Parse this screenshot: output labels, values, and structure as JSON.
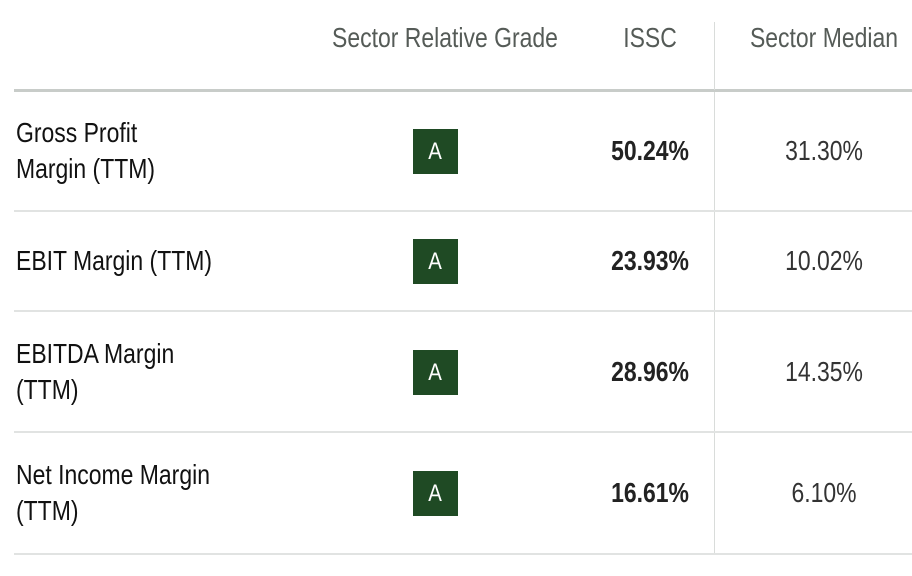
{
  "header": {
    "grade_label": "Sector Relative Grade",
    "ticker_label": "ISSC",
    "median_label": "Sector Median"
  },
  "rows": [
    {
      "metric": "Gross Profit\nMargin (TTM)",
      "grade": "A",
      "ticker_value": "50.24%",
      "median_value": "31.30%"
    },
    {
      "metric": "EBIT Margin (TTM)",
      "grade": "A",
      "ticker_value": "23.93%",
      "median_value": "10.02%"
    },
    {
      "metric": "EBITDA Margin\n(TTM)",
      "grade": "A",
      "ticker_value": "28.96%",
      "median_value": "14.35%"
    },
    {
      "metric": "Net Income Margin\n(TTM)",
      "grade": "A",
      "ticker_value": "16.61%",
      "median_value": "6.10%"
    }
  ],
  "colors": {
    "grade_badge": "#1f4a24",
    "header_text": "#555b57",
    "divider": "#c8ccc9"
  }
}
